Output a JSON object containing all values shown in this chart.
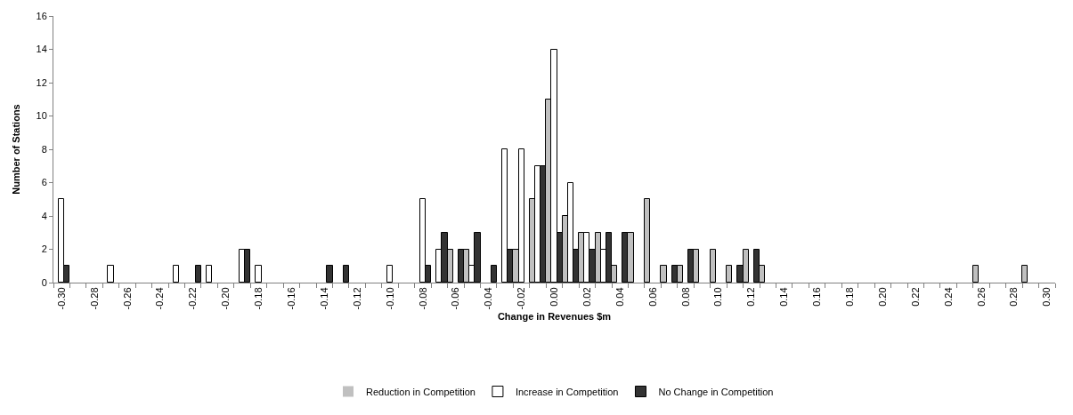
{
  "chart_data": {
    "type": "bar",
    "xlabel": "Change in Revenues $m",
    "ylabel": "Number of Stations",
    "categories": [
      "-0.30",
      null,
      "-0.28",
      null,
      "-0.26",
      null,
      "-0.24",
      null,
      "-0.22",
      null,
      "-0.20",
      null,
      "-0.18",
      null,
      "-0.16",
      null,
      "-0.14",
      null,
      "-0.12",
      null,
      "-0.10",
      null,
      "-0.08",
      null,
      "-0.06",
      null,
      "-0.04",
      null,
      "-0.02",
      null,
      "0.00",
      null,
      "0.02",
      null,
      "0.04",
      null,
      "0.06",
      null,
      "0.08",
      null,
      "0.10",
      null,
      "0.12",
      null,
      "0.14",
      null,
      "0.16",
      null,
      "0.18",
      null,
      "0.20",
      null,
      "0.22",
      null,
      "0.24",
      null,
      "0.26",
      null,
      "0.28",
      null,
      "0.30"
    ],
    "series": [
      {
        "name": "Reduction in Competition",
        "color": "#c0c0c0",
        "values": [
          0,
          0,
          0,
          0,
          0,
          0,
          0,
          0,
          0,
          0,
          0,
          0,
          0,
          0,
          0,
          0,
          0,
          0,
          0,
          0,
          0,
          0,
          0,
          0,
          2,
          2,
          0,
          0,
          2,
          5,
          11,
          4,
          3,
          3,
          1,
          3,
          5,
          1,
          1,
          2,
          2,
          1,
          2,
          1,
          0,
          0,
          0,
          0,
          0,
          0,
          0,
          0,
          0,
          0,
          0,
          0,
          1,
          0,
          0,
          1,
          0
        ]
      },
      {
        "name": "Increase in Competition",
        "color": "#ffffff",
        "values": [
          5,
          0,
          0,
          1,
          0,
          0,
          0,
          1,
          0,
          1,
          0,
          2,
          1,
          0,
          0,
          0,
          0,
          0,
          0,
          0,
          1,
          0,
          5,
          2,
          0,
          1,
          0,
          8,
          8,
          7,
          14,
          6,
          3,
          2,
          0,
          0,
          0,
          0,
          0,
          0,
          0,
          0,
          0,
          0,
          0,
          0,
          0,
          0,
          0,
          0,
          0,
          0,
          0,
          0,
          0,
          0,
          0,
          0,
          0,
          0,
          0
        ]
      },
      {
        "name": "No Change in Competition",
        "color": "#333333",
        "values": [
          1,
          0,
          0,
          0,
          0,
          0,
          0,
          0,
          1,
          0,
          0,
          2,
          0,
          0,
          0,
          0,
          1,
          1,
          0,
          0,
          0,
          0,
          1,
          3,
          2,
          3,
          1,
          2,
          0,
          7,
          3,
          2,
          2,
          3,
          3,
          0,
          0,
          1,
          2,
          0,
          0,
          1,
          2,
          0,
          0,
          0,
          0,
          0,
          0,
          0,
          0,
          0,
          0,
          0,
          0,
          0,
          0,
          0,
          0,
          0,
          0
        ]
      }
    ],
    "ylim": [
      0,
      16
    ],
    "yticks": [
      0,
      2,
      4,
      6,
      8,
      10,
      12,
      14,
      16
    ],
    "legend": "bottom"
  }
}
